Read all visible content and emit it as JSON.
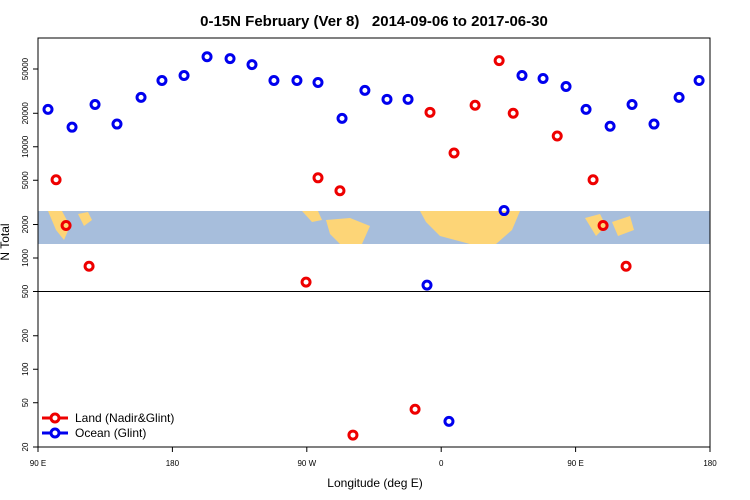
{
  "chart_data": {
    "type": "scatter",
    "title": "0-15N February (Ver 8)   2014-09-06 to 2017-06-30",
    "x_label": "Longitude (deg E)",
    "y_label": "N Total",
    "log_y": true,
    "xlim": [
      90,
      540
    ],
    "ylim": [
      20,
      95000
    ],
    "xticks": [
      {
        "value": 90,
        "label": "90 E"
      },
      180,
      {
        "value": 270,
        "label": "90 W"
      },
      {
        "value": 360,
        "label": "0"
      },
      {
        "value": 450,
        "label": "90 E"
      },
      {
        "value": 540,
        "label": "180"
      }
    ],
    "yticks": [
      20,
      50,
      100,
      200,
      500,
      1000,
      2000,
      5000,
      10000,
      20000,
      50000
    ],
    "hline": 500,
    "legend": "bottom-left",
    "series": [
      {
        "name": "Land (Nadir&Glint)",
        "color": "#ee0000",
        "x": [
          102.1,
          108.8,
          124.2,
          269.5,
          277.5,
          292.2,
          300.9,
          342.5,
          352.5,
          368.6,
          382.7,
          398.8,
          408.2,
          437.7,
          461.7,
          468.4,
          483.8
        ],
        "values": [
          5050,
          1960,
          843,
          607,
          5260,
          4020,
          25.6,
          43.7,
          20400,
          8790,
          23600,
          59500,
          20000,
          12500,
          5050,
          1960,
          843
        ]
      },
      {
        "name": "Ocean (Glint)",
        "color": "#0000ee",
        "x": [
          96.7,
          112.8,
          128.2,
          142.9,
          159.0,
          173.0,
          187.8,
          203.2,
          218.6,
          233.3,
          248.0,
          263.4,
          277.5,
          293.6,
          308.9,
          323.7,
          337.8,
          350.5,
          365.2,
          402.1,
          414.1,
          428.2,
          443.6,
          457.0,
          473.1,
          487.8,
          502.5,
          519.3,
          532.7
        ],
        "values": [
          21700,
          15000,
          24000,
          16000,
          27800,
          39400,
          43700,
          64500,
          62000,
          54800,
          39400,
          39400,
          37800,
          18000,
          32100,
          26700,
          26700,
          570,
          34,
          2670,
          43700,
          41100,
          34800,
          21700,
          15300,
          24000,
          16000,
          27800,
          39400
        ]
      }
    ]
  }
}
